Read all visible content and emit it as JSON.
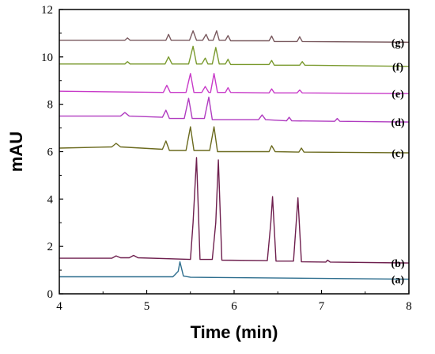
{
  "chart_data": {
    "type": "line",
    "title": "",
    "xlabel": "Time (min)",
    "ylabel": "mAU",
    "xlim": [
      4,
      8
    ],
    "ylim": [
      0,
      12
    ],
    "xticks": [
      "4",
      "5",
      "6",
      "7",
      "8"
    ],
    "yticks": [
      "0",
      "2",
      "4",
      "6",
      "8",
      "10",
      "12"
    ],
    "grid": false,
    "legend": "none",
    "series": [
      {
        "name": "(a)",
        "color": "#2f6f8f",
        "x": [
          4.0,
          5.3,
          5.36,
          5.38,
          5.42,
          5.5,
          8.0
        ],
        "y": [
          0.72,
          0.72,
          0.95,
          1.35,
          0.75,
          0.7,
          0.62
        ]
      },
      {
        "name": "(b)",
        "color": "#6e1f4e",
        "x": [
          4.0,
          4.6,
          4.65,
          4.7,
          4.8,
          4.85,
          4.9,
          5.5,
          5.53,
          5.57,
          5.61,
          5.75,
          5.79,
          5.82,
          5.86,
          6.38,
          6.42,
          6.44,
          6.48,
          6.68,
          6.71,
          6.73,
          6.77,
          7.05,
          7.07,
          7.1,
          8.0
        ],
        "y": [
          1.5,
          1.5,
          1.6,
          1.52,
          1.52,
          1.62,
          1.52,
          1.45,
          3.0,
          5.75,
          1.45,
          1.45,
          3.0,
          5.65,
          1.42,
          1.4,
          3.0,
          4.1,
          1.38,
          1.38,
          3.0,
          4.05,
          1.35,
          1.34,
          1.42,
          1.34,
          1.3
        ]
      },
      {
        "name": "(c)",
        "color": "#6b6a1e",
        "x": [
          4.0,
          4.6,
          4.65,
          4.7,
          5.18,
          5.22,
          5.26,
          5.45,
          5.5,
          5.54,
          5.72,
          5.77,
          5.81,
          6.4,
          6.43,
          6.47,
          6.74,
          6.77,
          6.8,
          8.0
        ],
        "y": [
          6.15,
          6.2,
          6.35,
          6.2,
          6.1,
          6.45,
          6.05,
          6.05,
          7.05,
          6.05,
          6.05,
          7.05,
          6.0,
          6.0,
          6.25,
          6.0,
          5.98,
          6.15,
          5.98,
          5.95
        ]
      },
      {
        "name": "(d)",
        "color": "#b03bc0",
        "x": [
          4.0,
          4.7,
          4.75,
          4.8,
          5.18,
          5.22,
          5.26,
          5.43,
          5.48,
          5.52,
          5.66,
          5.71,
          5.75,
          6.28,
          6.32,
          6.36,
          6.6,
          6.63,
          6.66,
          7.15,
          7.18,
          7.21,
          8.0
        ],
        "y": [
          7.5,
          7.5,
          7.65,
          7.5,
          7.45,
          7.75,
          7.4,
          7.4,
          8.25,
          7.4,
          7.4,
          8.3,
          7.35,
          7.35,
          7.55,
          7.35,
          7.3,
          7.45,
          7.3,
          7.28,
          7.4,
          7.28,
          7.25
        ]
      },
      {
        "name": "(e)",
        "color": "#c83ac8",
        "x": [
          4.0,
          5.19,
          5.23,
          5.27,
          5.45,
          5.5,
          5.54,
          5.63,
          5.67,
          5.71,
          5.73,
          5.77,
          5.81,
          5.9,
          5.93,
          5.96,
          6.4,
          6.43,
          6.46,
          6.72,
          6.75,
          6.78,
          8.0
        ],
        "y": [
          8.55,
          8.5,
          8.8,
          8.5,
          8.5,
          9.3,
          8.5,
          8.5,
          8.75,
          8.5,
          8.5,
          9.3,
          8.5,
          8.5,
          8.7,
          8.5,
          8.48,
          8.65,
          8.48,
          8.48,
          8.6,
          8.48,
          8.45
        ]
      },
      {
        "name": "(f)",
        "color": "#7a9a2e",
        "x": [
          4.0,
          4.75,
          4.78,
          4.81,
          5.21,
          5.25,
          5.29,
          5.48,
          5.53,
          5.57,
          5.63,
          5.67,
          5.7,
          5.75,
          5.79,
          5.83,
          5.9,
          5.93,
          5.96,
          6.4,
          6.43,
          6.46,
          6.75,
          6.78,
          6.81,
          8.0
        ],
        "y": [
          9.7,
          9.7,
          9.8,
          9.7,
          9.7,
          10.0,
          9.7,
          9.7,
          10.45,
          9.7,
          9.7,
          9.95,
          9.7,
          9.7,
          10.4,
          9.7,
          9.7,
          9.9,
          9.68,
          9.68,
          9.85,
          9.65,
          9.65,
          9.8,
          9.65,
          9.6
        ]
      },
      {
        "name": "(g)",
        "color": "#7a5a5f",
        "x": [
          4.0,
          4.75,
          4.78,
          4.81,
          5.22,
          5.25,
          5.28,
          5.49,
          5.53,
          5.57,
          5.64,
          5.68,
          5.71,
          5.76,
          5.8,
          5.83,
          5.9,
          5.93,
          5.96,
          6.4,
          6.43,
          6.46,
          6.72,
          6.75,
          6.78,
          8.0
        ],
        "y": [
          10.7,
          10.7,
          10.8,
          10.7,
          10.7,
          10.95,
          10.7,
          10.7,
          11.1,
          10.7,
          10.7,
          10.95,
          10.7,
          10.7,
          11.1,
          10.7,
          10.7,
          10.9,
          10.68,
          10.68,
          10.88,
          10.65,
          10.65,
          10.85,
          10.65,
          10.62
        ]
      }
    ]
  }
}
